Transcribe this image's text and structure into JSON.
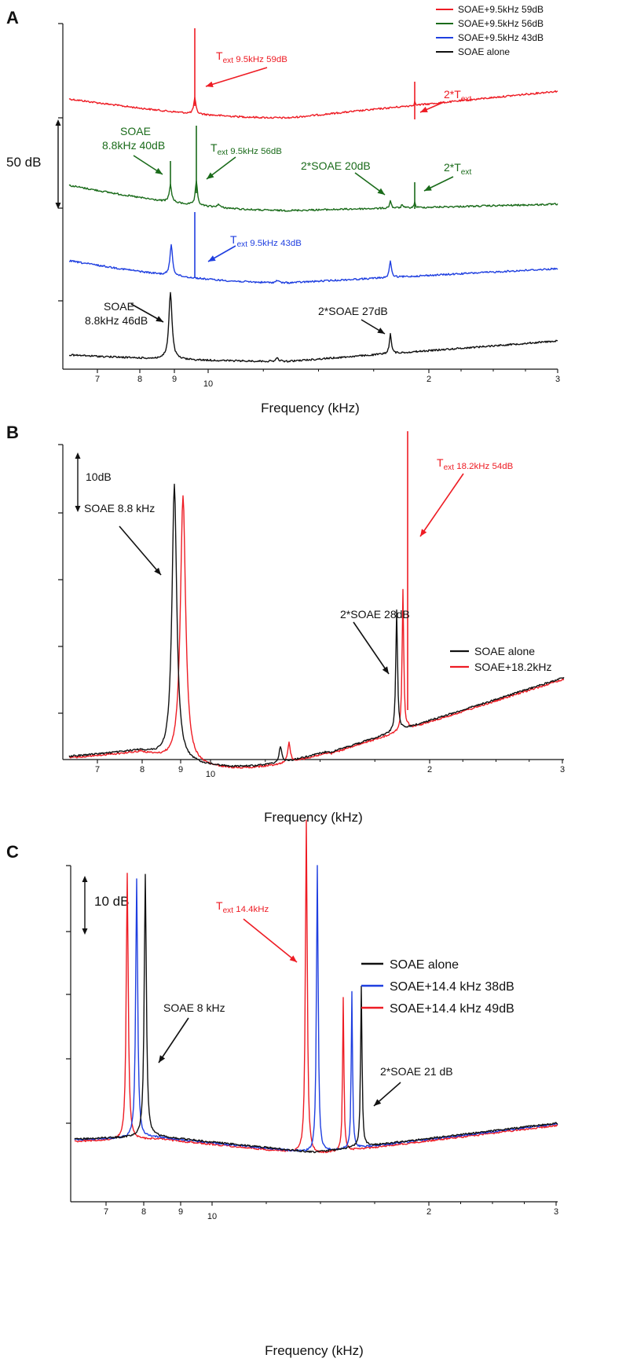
{
  "colors": {
    "red": "#ee1c24",
    "green": "#1a6b1a",
    "blue": "#1f3fe0",
    "black": "#111111"
  },
  "chart_data": [
    {
      "panel": "A",
      "type": "line",
      "xlabel": "Frequency (kHz)",
      "x_scale": "log",
      "x_ticks": [
        "7",
        "8",
        "9",
        "10",
        "2",
        "3"
      ],
      "scale_bar": "50 dB",
      "legend_position": "top-right",
      "series": [
        {
          "name": "SOAE+9.5kHz 59dB",
          "color": "red",
          "peaks_khz": [
            9.5,
            19
          ]
        },
        {
          "name": "SOAE+9.5kHz 56dB",
          "color": "green",
          "peaks_khz": [
            8.8,
            9.5,
            17.6,
            19
          ]
        },
        {
          "name": "SOAE+9.5kHz 43dB",
          "color": "blue",
          "peaks_khz": [
            8.8,
            9.5,
            17.6
          ]
        },
        {
          "name": "SOAE alone",
          "color": "black",
          "peaks_khz": [
            8.8,
            17.6
          ]
        }
      ],
      "annotations": [
        {
          "main": "T",
          "sub": "ext",
          "rest": " 9.5kHz 59dB",
          "color": "red"
        },
        {
          "main": "2*T",
          "sub": "ext",
          "rest": "",
          "color": "red"
        },
        {
          "lines": [
            "SOAE",
            "8.8kHz 40dB"
          ],
          "color": "green"
        },
        {
          "main": "T",
          "sub": "ext",
          "rest": " 9.5kHz 56dB",
          "color": "green"
        },
        {
          "main": "2*SOAE 20dB",
          "sub": "",
          "rest": "",
          "color": "green"
        },
        {
          "main": "2*T",
          "sub": "ext",
          "rest": "",
          "color": "green"
        },
        {
          "main": "T",
          "sub": "ext",
          "rest": " 9.5kHz 43dB",
          "color": "blue"
        },
        {
          "lines": [
            "SOAE",
            "8.8kHz 46dB"
          ],
          "color": "black"
        },
        {
          "main": "2*SOAE 27dB",
          "sub": "",
          "rest": "",
          "color": "black"
        }
      ]
    },
    {
      "panel": "B",
      "type": "line",
      "xlabel": "Frequency (kHz)",
      "x_scale": "log",
      "x_ticks": [
        "7",
        "8",
        "9",
        "10",
        "2",
        "3"
      ],
      "scale_bar": "10dB",
      "legend_position": "center-right",
      "series": [
        {
          "name": "SOAE alone",
          "color": "black",
          "peaks_khz": [
            8.8,
            12.4,
            17.6
          ]
        },
        {
          "name": "SOAE+18.2kHz",
          "color": "red",
          "peaks_khz": [
            9.1,
            12.7,
            17.9,
            18.2
          ]
        }
      ],
      "annotations": [
        {
          "main": "T",
          "sub": "ext",
          "rest": " 18.2kHz 54dB",
          "color": "red"
        },
        {
          "main": "SOAE 8.8 kHz",
          "sub": "",
          "rest": "",
          "color": "black"
        },
        {
          "main": "2*SOAE 28dB",
          "sub": "",
          "rest": "",
          "color": "black"
        }
      ]
    },
    {
      "panel": "C",
      "type": "line",
      "xlabel": "Frequency (kHz)",
      "x_scale": "log",
      "x_ticks": [
        "7",
        "8",
        "9",
        "10",
        "2",
        "3"
      ],
      "scale_bar": "10 dB",
      "legend_position": "center-right",
      "series": [
        {
          "name": "SOAE alone",
          "color": "black",
          "peaks_khz": [
            8.0,
            16.0
          ]
        },
        {
          "name": "SOAE+14.4 kHz 38dB",
          "color": "blue",
          "peaks_khz": [
            7.8,
            14.4,
            15.7
          ]
        },
        {
          "name": "SOAE+14.4 kHz 49dB",
          "color": "red",
          "peaks_khz": [
            7.6,
            14.1,
            15.3
          ]
        }
      ],
      "annotations": [
        {
          "main": "T",
          "sub": "ext",
          "rest": " 14.4kHz",
          "color": "red"
        },
        {
          "main": "SOAE 8 kHz",
          "sub": "",
          "rest": "",
          "color": "black"
        },
        {
          "main": "2*SOAE 21 dB",
          "sub": "",
          "rest": "",
          "color": "black"
        }
      ]
    }
  ]
}
